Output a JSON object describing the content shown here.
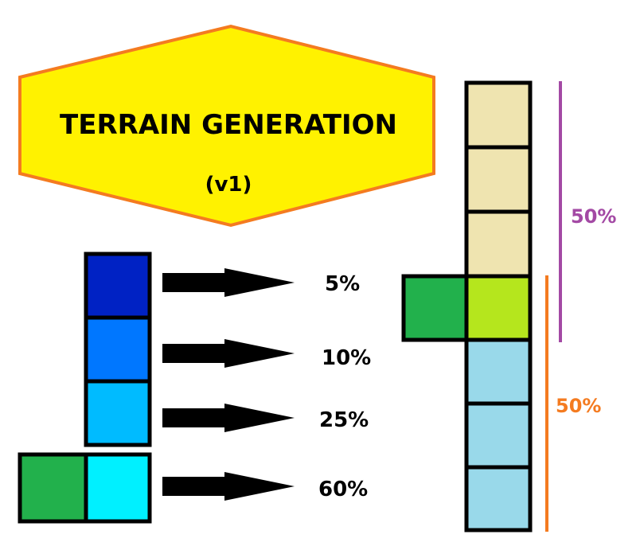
{
  "title": {
    "line1": "TERRAIN GENERATION",
    "line2": "(v1)",
    "fill_color": "#FFF200",
    "border_color": "#F47B20"
  },
  "left_column": {
    "rows": [
      {
        "percent": "5%",
        "color": "#0022C4"
      },
      {
        "percent": "10%",
        "color": "#0077FF"
      },
      {
        "percent": "25%",
        "color": "#00BBFF"
      },
      {
        "percent": "60%",
        "color": "#00F0FF"
      }
    ],
    "side_tile_color": "#22B14C"
  },
  "right_column": {
    "tiles": [
      "#EFE4B0",
      "#EFE4B0",
      "#EFE4B0",
      "#B5E61D",
      "#99D9EA",
      "#99D9EA",
      "#99D9EA"
    ],
    "side_tile_color": "#22B14C",
    "upper_bracket": {
      "label": "50%",
      "color": "#A349A4"
    },
    "lower_bracket": {
      "label": "50%",
      "color": "#F47B20"
    }
  }
}
